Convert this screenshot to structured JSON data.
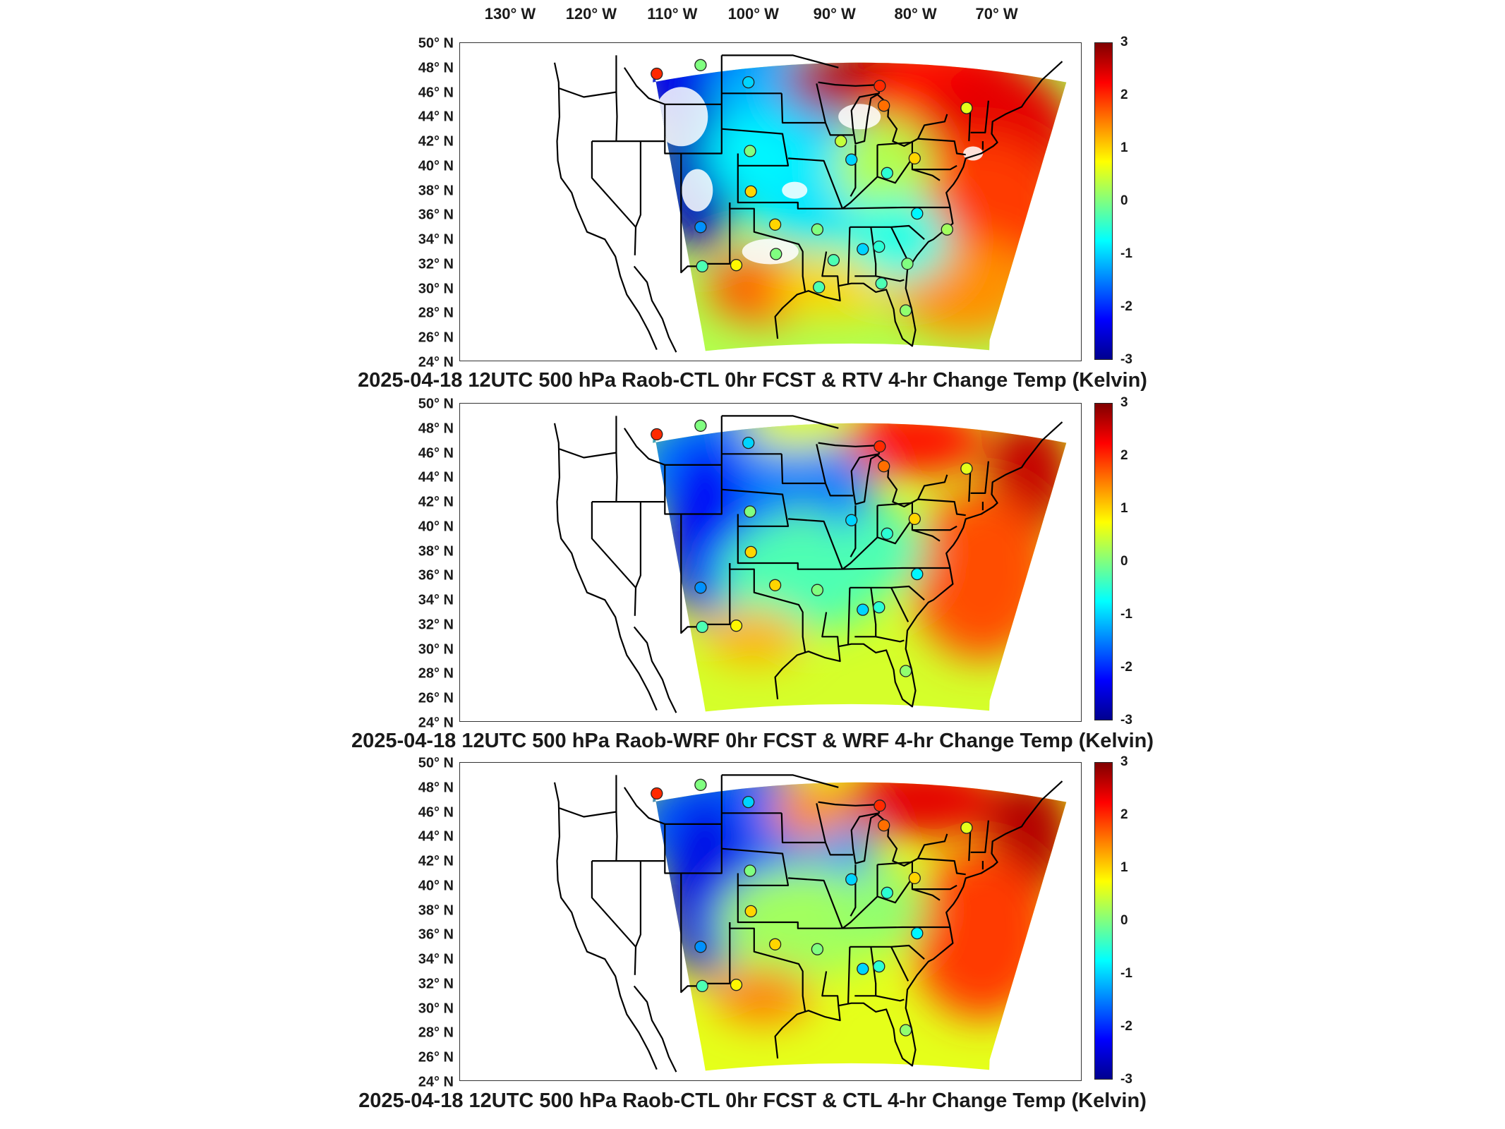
{
  "lon_labels": [
    "130° W",
    "120° W",
    "110° W",
    "100° W",
    "90° W",
    "80° W",
    "70° W"
  ],
  "lat_labels": [
    "50° N",
    "48° N",
    "46° N",
    "44° N",
    "42° N",
    "40° N",
    "38° N",
    "36° N",
    "34° N",
    "32° N",
    "30° N",
    "28° N",
    "26° N",
    "24° N"
  ],
  "colorbar_ticks": [
    "3",
    "2",
    "1",
    "0",
    "-1",
    "-2",
    "-3"
  ],
  "panels": [
    {
      "title": "2025-04-18 12UTC 500 hPa Raob-CTL 0hr FCST & RTV 4-hr Change Temp (Kelvin)"
    },
    {
      "title": "2025-04-18 12UTC 500 hPa Raob-WRF 0hr FCST & WRF 4-hr Change Temp (Kelvin)"
    },
    {
      "title": "2025-04-18 12UTC 500 hPa Raob-CTL 0hr FCST & CTL 4-hr Change Temp (Kelvin)"
    }
  ],
  "chart_data": [
    {
      "type": "heatmap",
      "title": "2025-04-18 12UTC 500 hPa Raob-CTL 0hr FCST & RTV 4-hr Change Temp (Kelvin)",
      "xlim": [
        -135,
        -60
      ],
      "ylim": [
        24,
        50
      ],
      "colorbar": {
        "min": -3,
        "max": 3,
        "colormap": "jet",
        "ticks": [
          -3,
          -2,
          -1,
          0,
          1,
          2,
          3
        ]
      },
      "raob_points": [
        {
          "lon": -112.0,
          "lat": 47.5,
          "value": 2.0
        },
        {
          "lon": -106.6,
          "lat": 48.2,
          "value": 0.0
        },
        {
          "lon": -100.7,
          "lat": 46.8,
          "value": -1.0
        },
        {
          "lon": -84.5,
          "lat": 46.5,
          "value": 2.0
        },
        {
          "lon": -84.0,
          "lat": 44.9,
          "value": 1.6
        },
        {
          "lon": -73.8,
          "lat": 44.7,
          "value": 0.6
        },
        {
          "lon": -100.5,
          "lat": 41.2,
          "value": 0.0
        },
        {
          "lon": -89.3,
          "lat": 42.0,
          "value": 0.4
        },
        {
          "lon": -88.0,
          "lat": 40.5,
          "value": -1.0
        },
        {
          "lon": -83.6,
          "lat": 39.4,
          "value": -0.5
        },
        {
          "lon": -80.2,
          "lat": 40.6,
          "value": 1.0
        },
        {
          "lon": -100.4,
          "lat": 37.9,
          "value": 1.0
        },
        {
          "lon": -106.6,
          "lat": 35.0,
          "value": -1.4
        },
        {
          "lon": -97.4,
          "lat": 35.2,
          "value": 1.0
        },
        {
          "lon": -92.2,
          "lat": 34.8,
          "value": 0.0
        },
        {
          "lon": -79.9,
          "lat": 36.1,
          "value": -0.8
        },
        {
          "lon": -76.2,
          "lat": 34.8,
          "value": 0.2
        },
        {
          "lon": -86.6,
          "lat": 33.2,
          "value": -1.0
        },
        {
          "lon": -84.6,
          "lat": 33.4,
          "value": -0.5
        },
        {
          "lon": -81.1,
          "lat": 32.0,
          "value": 0.0
        },
        {
          "lon": -106.4,
          "lat": 31.8,
          "value": -0.3
        },
        {
          "lon": -102.2,
          "lat": 31.9,
          "value": 0.8
        },
        {
          "lon": -97.3,
          "lat": 32.8,
          "value": 0.0
        },
        {
          "lon": -90.2,
          "lat": 32.3,
          "value": -0.3
        },
        {
          "lon": -92.0,
          "lat": 30.1,
          "value": -0.3
        },
        {
          "lon": -84.3,
          "lat": 30.4,
          "value": -0.3
        },
        {
          "lon": -81.3,
          "lat": 28.2,
          "value": 0.1
        }
      ]
    },
    {
      "type": "heatmap",
      "title": "2025-04-18 12UTC 500 hPa Raob-WRF 0hr FCST & WRF 4-hr Change Temp (Kelvin)",
      "xlim": [
        -135,
        -60
      ],
      "ylim": [
        24,
        50
      ],
      "colorbar": {
        "min": -3,
        "max": 3,
        "colormap": "jet",
        "ticks": [
          -3,
          -2,
          -1,
          0,
          1,
          2,
          3
        ]
      },
      "raob_points": [
        {
          "lon": -112.0,
          "lat": 47.5,
          "value": 2.0
        },
        {
          "lon": -106.6,
          "lat": 48.2,
          "value": 0.0
        },
        {
          "lon": -100.7,
          "lat": 46.8,
          "value": -1.0
        },
        {
          "lon": -84.5,
          "lat": 46.5,
          "value": 2.0
        },
        {
          "lon": -84.0,
          "lat": 44.9,
          "value": 1.6
        },
        {
          "lon": -73.8,
          "lat": 44.7,
          "value": 0.6
        },
        {
          "lon": -100.5,
          "lat": 41.2,
          "value": 0.0
        },
        {
          "lon": -88.0,
          "lat": 40.5,
          "value": -1.0
        },
        {
          "lon": -83.6,
          "lat": 39.4,
          "value": -0.5
        },
        {
          "lon": -80.2,
          "lat": 40.6,
          "value": 1.0
        },
        {
          "lon": -100.4,
          "lat": 37.9,
          "value": 1.0
        },
        {
          "lon": -106.6,
          "lat": 35.0,
          "value": -1.4
        },
        {
          "lon": -97.4,
          "lat": 35.2,
          "value": 1.0
        },
        {
          "lon": -92.2,
          "lat": 34.8,
          "value": 0.0
        },
        {
          "lon": -79.9,
          "lat": 36.1,
          "value": -0.8
        },
        {
          "lon": -86.6,
          "lat": 33.2,
          "value": -1.0
        },
        {
          "lon": -84.6,
          "lat": 33.4,
          "value": -0.5
        },
        {
          "lon": -106.4,
          "lat": 31.8,
          "value": -0.3
        },
        {
          "lon": -102.2,
          "lat": 31.9,
          "value": 0.8
        },
        {
          "lon": -81.3,
          "lat": 28.2,
          "value": 0.1
        }
      ]
    },
    {
      "type": "heatmap",
      "title": "2025-04-18 12UTC 500 hPa Raob-CTL 0hr FCST & CTL 4-hr Change Temp (Kelvin)",
      "xlim": [
        -135,
        -60
      ],
      "ylim": [
        24,
        50
      ],
      "colorbar": {
        "min": -3,
        "max": 3,
        "colormap": "jet",
        "ticks": [
          -3,
          -2,
          -1,
          0,
          1,
          2,
          3
        ]
      },
      "raob_points": [
        {
          "lon": -112.0,
          "lat": 47.5,
          "value": 2.0
        },
        {
          "lon": -106.6,
          "lat": 48.2,
          "value": 0.0
        },
        {
          "lon": -100.7,
          "lat": 46.8,
          "value": -1.0
        },
        {
          "lon": -84.5,
          "lat": 46.5,
          "value": 2.0
        },
        {
          "lon": -84.0,
          "lat": 44.9,
          "value": 1.6
        },
        {
          "lon": -73.8,
          "lat": 44.7,
          "value": 0.6
        },
        {
          "lon": -100.5,
          "lat": 41.2,
          "value": 0.0
        },
        {
          "lon": -88.0,
          "lat": 40.5,
          "value": -1.0
        },
        {
          "lon": -83.6,
          "lat": 39.4,
          "value": -0.5
        },
        {
          "lon": -80.2,
          "lat": 40.6,
          "value": 1.0
        },
        {
          "lon": -100.4,
          "lat": 37.9,
          "value": 1.0
        },
        {
          "lon": -106.6,
          "lat": 35.0,
          "value": -1.4
        },
        {
          "lon": -97.4,
          "lat": 35.2,
          "value": 1.0
        },
        {
          "lon": -92.2,
          "lat": 34.8,
          "value": 0.0
        },
        {
          "lon": -79.9,
          "lat": 36.1,
          "value": -0.8
        },
        {
          "lon": -86.6,
          "lat": 33.2,
          "value": -1.0
        },
        {
          "lon": -84.6,
          "lat": 33.4,
          "value": -0.5
        },
        {
          "lon": -106.4,
          "lat": 31.8,
          "value": -0.3
        },
        {
          "lon": -102.2,
          "lat": 31.9,
          "value": 0.8
        },
        {
          "lon": -81.3,
          "lat": 28.2,
          "value": 0.1
        }
      ]
    }
  ]
}
